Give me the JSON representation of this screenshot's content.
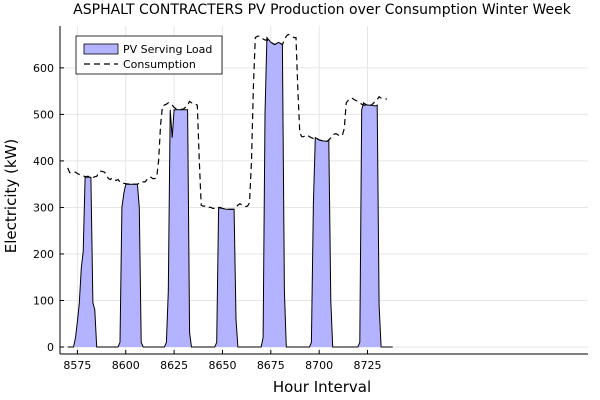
{
  "chart_data": {
    "type": "area",
    "title": "ASPHALT CONTRACTERS PV Production over Consumption Winter Week",
    "xlabel": "Hour Interval",
    "ylabel": "Electricity (kW)",
    "xlim": [
      8566,
      8839
    ],
    "ylim": [
      -15,
      690
    ],
    "xticks": [
      8575,
      8600,
      8625,
      8650,
      8675,
      8700,
      8725
    ],
    "yticks": [
      0,
      100,
      200,
      300,
      400,
      500,
      600
    ],
    "grid": true,
    "legend_position": "top-left",
    "series": [
      {
        "name": "PV Serving Load",
        "type": "area",
        "color": "#b3b3ff",
        "x": [
          8570,
          8573,
          8574,
          8575,
          8576,
          8577,
          8578,
          8579,
          8580,
          8582,
          8583,
          8584,
          8585,
          8586,
          8595,
          8596,
          8597,
          8598,
          8599,
          8600,
          8602,
          8604,
          8606,
          8607,
          8608,
          8609,
          8619,
          8620,
          8621,
          8622,
          8623,
          8624,
          8625,
          8626,
          8628,
          8630,
          8632,
          8633,
          8634,
          8644,
          8645,
          8646,
          8647,
          8648,
          8649,
          8650,
          8652,
          8654,
          8656,
          8657,
          8658,
          8668,
          8669,
          8670,
          8671,
          8672,
          8673,
          8674,
          8675,
          8677,
          8679,
          8681,
          8682,
          8683,
          8693,
          8694,
          8695,
          8696,
          8697,
          8698,
          8699,
          8700,
          8702,
          8704,
          8705,
          8706,
          8707,
          8718,
          8719,
          8720,
          8721,
          8722,
          8723,
          8724,
          8725,
          8727,
          8729,
          8730,
          8731,
          8732,
          8738
        ],
        "values": [
          0,
          0,
          20,
          55,
          95,
          170,
          205,
          365,
          365,
          365,
          95,
          80,
          0,
          0,
          0,
          0,
          10,
          300,
          330,
          350,
          350,
          350,
          350,
          300,
          10,
          0,
          0,
          0,
          10,
          120,
          510,
          450,
          510,
          510,
          510,
          510,
          510,
          30,
          0,
          0,
          0,
          0,
          10,
          300,
          300,
          298,
          296,
          296,
          296,
          60,
          0,
          0,
          0,
          0,
          20,
          500,
          665,
          660,
          655,
          650,
          655,
          650,
          120,
          0,
          0,
          0,
          0,
          10,
          310,
          450,
          448,
          445,
          443,
          442,
          445,
          100,
          0,
          0,
          0,
          0,
          10,
          510,
          525,
          522,
          520,
          520,
          518,
          520,
          90,
          0,
          0
        ]
      },
      {
        "name": "Consumption",
        "type": "line",
        "dash": "dashed",
        "color": "#000000",
        "x": [
          8570,
          8571,
          8572,
          8573,
          8574,
          8575,
          8576,
          8577,
          8578,
          8579,
          8580,
          8582,
          8583,
          8584,
          8585,
          8586,
          8587,
          8588,
          8589,
          8590,
          8591,
          8592,
          8593,
          8594,
          8595,
          8596,
          8597,
          8598,
          8599,
          8600,
          8602,
          8604,
          8606,
          8607,
          8608,
          8609,
          8610,
          8611,
          8612,
          8613,
          8614,
          8615,
          8616,
          8617,
          8618,
          8619,
          8620,
          8621,
          8622,
          8623,
          8624,
          8625,
          8626,
          8628,
          8630,
          8632,
          8633,
          8634,
          8635,
          8636,
          8637,
          8638,
          8639,
          8640,
          8641,
          8642,
          8643,
          8644,
          8645,
          8646,
          8647,
          8648,
          8649,
          8650,
          8652,
          8654,
          8656,
          8657,
          8658,
          8659,
          8660,
          8661,
          8662,
          8663,
          8664,
          8665,
          8666,
          8667,
          8668,
          8669,
          8670,
          8671,
          8672,
          8673,
          8674,
          8675,
          8677,
          8679,
          8681,
          8682,
          8683,
          8684,
          8685,
          8686,
          8687,
          8688,
          8689,
          8690,
          8691,
          8692,
          8693,
          8694,
          8695,
          8696,
          8697,
          8698,
          8699,
          8700,
          8702,
          8704,
          8705,
          8706,
          8707,
          8708,
          8709,
          8710,
          8711,
          8712,
          8713,
          8714,
          8715,
          8716,
          8717,
          8718,
          8719,
          8720,
          8721,
          8722,
          8723,
          8724,
          8725,
          8727,
          8729,
          8730,
          8731,
          8732,
          8733,
          8734,
          8735
        ],
        "values": [
          385,
          375,
          374,
          375,
          376,
          373,
          371,
          369,
          368,
          366,
          367,
          366,
          364,
          366,
          367,
          374,
          378,
          377,
          376,
          370,
          362,
          360,
          363,
          361,
          358,
          360,
          355,
          352,
          352,
          351,
          350,
          350,
          350,
          352,
          355,
          355,
          355,
          360,
          365,
          365,
          362,
          362,
          365,
          400,
          478,
          518,
          520,
          522,
          525,
          522,
          520,
          515,
          512,
          510,
          512,
          520,
          528,
          525,
          525,
          522,
          520,
          400,
          305,
          303,
          303,
          300,
          300,
          300,
          298,
          298,
          298,
          299,
          299,
          298,
          296,
          296,
          296,
          300,
          305,
          308,
          305,
          304,
          302,
          303,
          310,
          400,
          560,
          665,
          668,
          668,
          665,
          662,
          660,
          660,
          658,
          655,
          650,
          655,
          650,
          660,
          668,
          672,
          670,
          668,
          665,
          665,
          550,
          460,
          452,
          452,
          455,
          455,
          452,
          450,
          448,
          450,
          448,
          445,
          443,
          442,
          445,
          450,
          455,
          458,
          458,
          455,
          455,
          455,
          470,
          525,
          530,
          533,
          535,
          532,
          530,
          528,
          525,
          522,
          520,
          520,
          518,
          520,
          528,
          532,
          538,
          535,
          534,
          533,
          533
        ]
      }
    ]
  }
}
